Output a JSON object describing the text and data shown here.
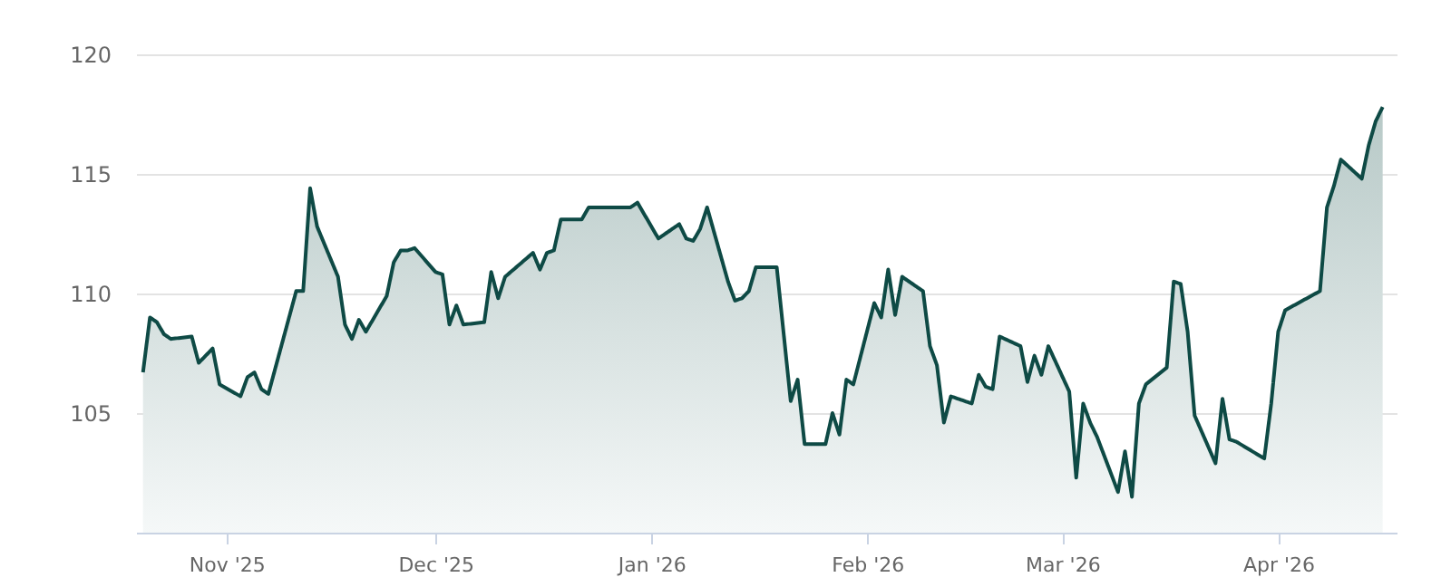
{
  "chart_data": {
    "type": "area",
    "x": [
      "2025-10-20",
      "2025-10-21",
      "2025-10-22",
      "2025-10-23",
      "2025-10-24",
      "2025-10-27",
      "2025-10-28",
      "2025-10-30",
      "2025-10-31",
      "2025-11-03",
      "2025-11-04",
      "2025-11-05",
      "2025-11-06",
      "2025-11-07",
      "2025-11-11",
      "2025-11-12",
      "2025-11-13",
      "2025-11-14",
      "2025-11-17",
      "2025-11-18",
      "2025-11-19",
      "2025-11-20",
      "2025-11-21",
      "2025-11-24",
      "2025-11-25",
      "2025-11-26",
      "2025-11-27",
      "2025-11-28",
      "2025-12-01",
      "2025-12-02",
      "2025-12-03",
      "2025-12-04",
      "2025-12-05",
      "2025-12-08",
      "2025-12-09",
      "2025-12-10",
      "2025-12-11",
      "2025-12-15",
      "2025-12-16",
      "2025-12-17",
      "2025-12-18",
      "2025-12-19",
      "2025-12-22",
      "2025-12-23",
      "2025-12-29",
      "2025-12-30",
      "2026-01-02",
      "2026-01-05",
      "2026-01-06",
      "2026-01-07",
      "2026-01-08",
      "2026-01-09",
      "2026-01-12",
      "2026-01-13",
      "2026-01-14",
      "2026-01-15",
      "2026-01-16",
      "2026-01-19",
      "2026-01-21",
      "2026-01-22",
      "2026-01-23",
      "2026-01-26",
      "2026-01-27",
      "2026-01-28",
      "2026-01-29",
      "2026-01-30",
      "2026-02-02",
      "2026-02-03",
      "2026-02-04",
      "2026-02-05",
      "2026-02-06",
      "2026-02-09",
      "2026-02-10",
      "2026-02-11",
      "2026-02-12",
      "2026-02-13",
      "2026-02-16",
      "2026-02-17",
      "2026-02-18",
      "2026-02-19",
      "2026-02-20",
      "2026-02-23",
      "2026-02-24",
      "2026-02-25",
      "2026-02-26",
      "2026-02-27",
      "2026-03-02",
      "2026-03-03",
      "2026-03-04",
      "2026-03-05",
      "2026-03-06",
      "2026-03-09",
      "2026-03-10",
      "2026-03-11",
      "2026-03-12",
      "2026-03-13",
      "2026-03-16",
      "2026-03-17",
      "2026-03-18",
      "2026-03-19",
      "2026-03-20",
      "2026-03-23",
      "2026-03-24",
      "2026-03-25",
      "2026-03-26",
      "2026-03-30",
      "2026-03-31",
      "2026-04-01",
      "2026-04-02",
      "2026-04-07",
      "2026-04-08",
      "2026-04-09",
      "2026-04-10",
      "2026-04-13",
      "2026-04-14",
      "2026-04-15",
      "2026-04-16"
    ],
    "series": [
      {
        "color": "#0e4a45",
        "values": [
          106.7,
          109.0,
          108.8,
          108.3,
          108.1,
          108.2,
          107.1,
          107.7,
          106.2,
          105.7,
          106.5,
          106.7,
          106.0,
          105.8,
          110.1,
          110.1,
          114.4,
          112.8,
          110.7,
          108.7,
          108.1,
          108.9,
          108.4,
          109.9,
          111.3,
          111.8,
          111.8,
          111.9,
          110.9,
          110.8,
          108.7,
          109.5,
          108.7,
          108.8,
          110.9,
          109.8,
          110.7,
          111.7,
          111.0,
          111.7,
          111.8,
          113.1,
          113.1,
          113.6,
          113.6,
          113.8,
          112.3,
          112.9,
          112.3,
          112.2,
          112.7,
          113.6,
          110.5,
          109.7,
          109.8,
          110.1,
          111.1,
          111.1,
          105.5,
          106.4,
          103.7,
          103.7,
          105.0,
          104.1,
          106.4,
          106.2,
          109.6,
          109.0,
          111.0,
          109.1,
          110.7,
          110.1,
          107.8,
          107.0,
          104.6,
          105.7,
          105.4,
          106.6,
          106.1,
          106.0,
          108.2,
          107.8,
          106.3,
          107.4,
          106.6,
          107.8,
          105.9,
          102.3,
          105.4,
          104.6,
          104.0,
          101.7,
          103.4,
          101.5,
          105.4,
          106.2,
          106.9,
          110.5,
          110.4,
          108.4,
          104.9,
          102.9,
          105.6,
          103.9,
          103.8,
          103.1,
          105.4,
          108.4,
          109.3,
          110.1,
          113.6,
          114.5,
          115.6,
          114.8,
          116.2,
          117.2,
          117.8
        ]
      }
    ],
    "xlim": [
      "2025-10-19",
      "2026-04-18"
    ],
    "xticks": [
      {
        "value": "2025-11-01",
        "label": "Nov '25"
      },
      {
        "value": "2025-12-01",
        "label": "Dec '25"
      },
      {
        "value": "2026-01-01",
        "label": "Jan '26"
      },
      {
        "value": "2026-02-01",
        "label": "Feb '26"
      },
      {
        "value": "2026-03-01",
        "label": "Mar '26"
      },
      {
        "value": "2026-04-01",
        "label": "Apr '26"
      }
    ],
    "ylim": [
      100,
      120
    ],
    "yticks": [
      105,
      110,
      115,
      120
    ],
    "grid": "y"
  }
}
